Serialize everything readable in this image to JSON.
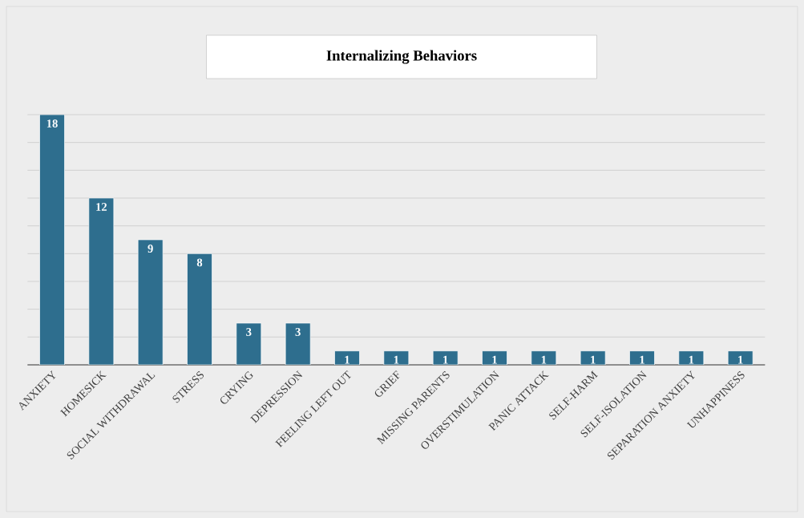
{
  "chart_data": {
    "type": "bar",
    "title": "Internalizing Behaviors",
    "categories": [
      "ANXIETY",
      "HOMESICK",
      "SOCIAL WITHDRAWAL",
      "STRESS",
      "CRYING",
      "DEPRESSION",
      "FEELING LEFT OUT",
      "GRIEF",
      "MISSING PARENTS",
      "OVERSTIMULATION",
      "PANIC ATTACK",
      "SELF-HARM",
      "SELF-ISOLATION",
      "SEPARATION ANXIETY",
      "UNHAPPINESS"
    ],
    "values": [
      18,
      12,
      9,
      8,
      3,
      3,
      1,
      1,
      1,
      1,
      1,
      1,
      1,
      1,
      1
    ],
    "color": "#2e6e8e",
    "data_labels": true,
    "grid": "y",
    "tick_labels": "x",
    "ylim": [
      0,
      18
    ],
    "yticks": [
      {
        "value": 0,
        "label": null
      },
      {
        "value": 2,
        "label": null
      },
      {
        "value": 4,
        "label": null
      },
      {
        "value": 6,
        "label": null
      },
      {
        "value": 8,
        "label": null
      },
      {
        "value": 10,
        "label": null
      },
      {
        "value": 12,
        "label": null
      },
      {
        "value": 14,
        "label": null
      },
      {
        "value": 16,
        "label": null
      },
      {
        "value": 18,
        "label": null
      }
    ]
  }
}
